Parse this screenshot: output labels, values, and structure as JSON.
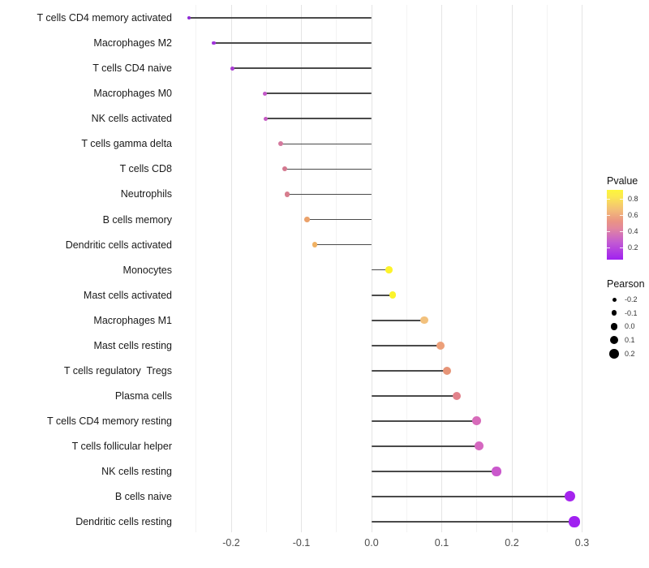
{
  "chart_data": {
    "type": "lollipop",
    "title": "",
    "xlabel": "",
    "ylabel": "",
    "x_tick_values": [
      -0.2,
      -0.1,
      0.0,
      0.1,
      0.2,
      0.3
    ],
    "x_tick_labels": [
      "-0.2",
      "-0.1",
      "0.0",
      "0.1",
      "0.2",
      "0.3"
    ],
    "x_minor_tick_values": [
      -0.25,
      -0.15,
      -0.05,
      0.05,
      0.15,
      0.25
    ],
    "xlim": [
      -0.2775,
      0.3205
    ],
    "baseline": 0.0,
    "grid": "vertical major and minor, light gray on white panel",
    "legend_position": "right",
    "stem_color": "#4a4a4a",
    "categories": [
      "T cells CD4 memory activated",
      "Macrophages M2",
      "T cells CD4 naive",
      "Macrophages M0",
      "NK cells activated",
      "T cells gamma delta",
      "T cells CD8",
      "Neutrophils",
      "B cells memory",
      "Dendritic cells activated",
      "Monocytes",
      "Mast cells activated",
      "Macrophages M1",
      "Mast cells resting",
      "T cells regulatory  Tregs",
      "Plasma cells",
      "T cells CD4 memory resting",
      "T cells follicular helper",
      "NK cells resting",
      "B cells naive",
      "Dendritic cells resting"
    ],
    "points": [
      {
        "label": "T cells CD4 memory activated",
        "pearson": -0.26,
        "color": "#8E2BD4"
      },
      {
        "label": "Macrophages M2",
        "pearson": -0.225,
        "color": "#A133DB"
      },
      {
        "label": "T cells CD4 naive",
        "pearson": -0.198,
        "color": "#A93CD2"
      },
      {
        "label": "Macrophages M0",
        "pearson": -0.152,
        "color": "#C458C9"
      },
      {
        "label": "NK cells activated",
        "pearson": -0.151,
        "color": "#C55AC3"
      },
      {
        "label": "T cells gamma delta",
        "pearson": -0.129,
        "color": "#D4799E"
      },
      {
        "label": "T cells CD8",
        "pearson": -0.124,
        "color": "#D3788F"
      },
      {
        "label": "Neutrophils",
        "pearson": -0.12,
        "color": "#D77D8D"
      },
      {
        "label": "B cells memory",
        "pearson": -0.092,
        "color": "#EBA26B"
      },
      {
        "label": "Dendritic cells activated",
        "pearson": -0.081,
        "color": "#F0B163"
      },
      {
        "label": "Monocytes",
        "pearson": 0.025,
        "color": "#FDF32B"
      },
      {
        "label": "Mast cells activated",
        "pearson": 0.03,
        "color": "#FBF32B"
      },
      {
        "label": "Macrophages M1",
        "pearson": 0.075,
        "color": "#F2C17D"
      },
      {
        "label": "Mast cells resting",
        "pearson": 0.098,
        "color": "#EC9F79"
      },
      {
        "label": "T cells regulatory  Tregs",
        "pearson": 0.108,
        "color": "#E69477"
      },
      {
        "label": "Plasma cells",
        "pearson": 0.121,
        "color": "#E2828B"
      },
      {
        "label": "T cells CD4 memory resting",
        "pearson": 0.15,
        "color": "#D76BBA"
      },
      {
        "label": "T cells follicular helper",
        "pearson": 0.153,
        "color": "#D568C0"
      },
      {
        "label": "NK cells resting",
        "pearson": 0.178,
        "color": "#CA58CC"
      },
      {
        "label": "B cells naive",
        "pearson": 0.283,
        "color": "#A524EE"
      },
      {
        "label": "Dendritic cells resting",
        "pearson": 0.289,
        "color": "#A021F0"
      }
    ]
  },
  "legend": {
    "pvalue": {
      "title": "Pvalue",
      "tick_labels": [
        "0.8",
        "0.6",
        "0.4",
        "0.2"
      ],
      "tick_values": [
        0.8,
        0.6,
        0.4,
        0.2
      ],
      "domain": [
        0.055,
        0.91
      ],
      "gradient_bottom": "#A021F0",
      "gradient_top": "#FDF63B"
    },
    "pearson": {
      "title": "Pearson",
      "items": [
        {
          "label": "-0.2",
          "value": -0.2
        },
        {
          "label": "-0.1",
          "value": -0.1
        },
        {
          "label": "0.0",
          "value": 0.0
        },
        {
          "label": "0.1",
          "value": 0.1
        },
        {
          "label": "0.2",
          "value": 0.2
        }
      ],
      "dot_color": "#000000"
    }
  }
}
